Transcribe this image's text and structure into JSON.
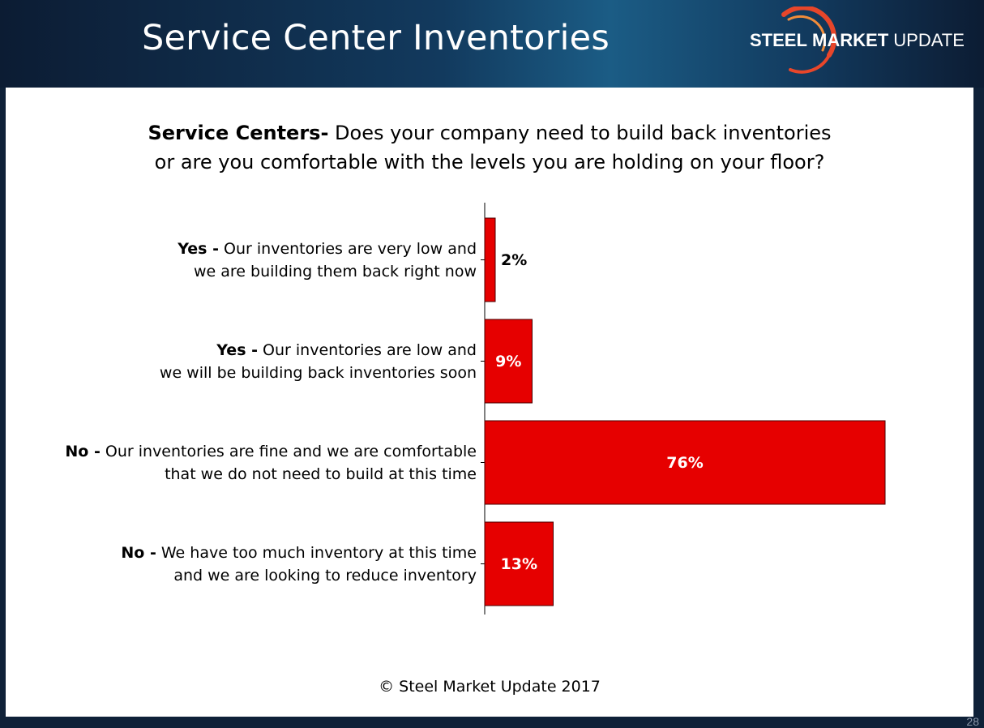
{
  "slide": {
    "title": "Service Center Inventories",
    "page_number": "28"
  },
  "logo": {
    "word1": "STEEL",
    "word2": "MARKET",
    "word3": "UPDATE",
    "arc_color": "#e8462a"
  },
  "question": {
    "line1_bold": "Service Centers-",
    "line1_rest": " Does your company need to build back inventories",
    "line2": "or are you comfortable with the levels you are holding on your floor?"
  },
  "footer": {
    "copyright": "© Steel Market Update 2017"
  },
  "colors": {
    "bar_fill": "#e60000",
    "bar_stroke": "#4a0000",
    "axis": "#000000",
    "inside_label": "#ffffff",
    "outside_label": "#000000"
  },
  "chart_data": {
    "type": "bar",
    "orientation": "horizontal",
    "value_unit": "%",
    "categories": [
      {
        "label_bold": "Yes -",
        "label_line1": " Our inventories are very low and",
        "label_line2": "we are building them back right now"
      },
      {
        "label_bold": "Yes -",
        "label_line1": " Our inventories are low and",
        "label_line2": "we will be building back inventories soon"
      },
      {
        "label_bold": "No -",
        "label_line1": " Our inventories are fine and we are comfortable",
        "label_line2": "that we do not need to build at this time"
      },
      {
        "label_bold": "No -",
        "label_line1": " We have too much inventory at this time",
        "label_line2": "and we are looking to reduce inventory"
      }
    ],
    "values": [
      2,
      9,
      76,
      13
    ],
    "data_labels": [
      "2%",
      "9%",
      "76%",
      "13%"
    ],
    "xlim": [
      0,
      76
    ],
    "grid": false,
    "legend": "none"
  }
}
